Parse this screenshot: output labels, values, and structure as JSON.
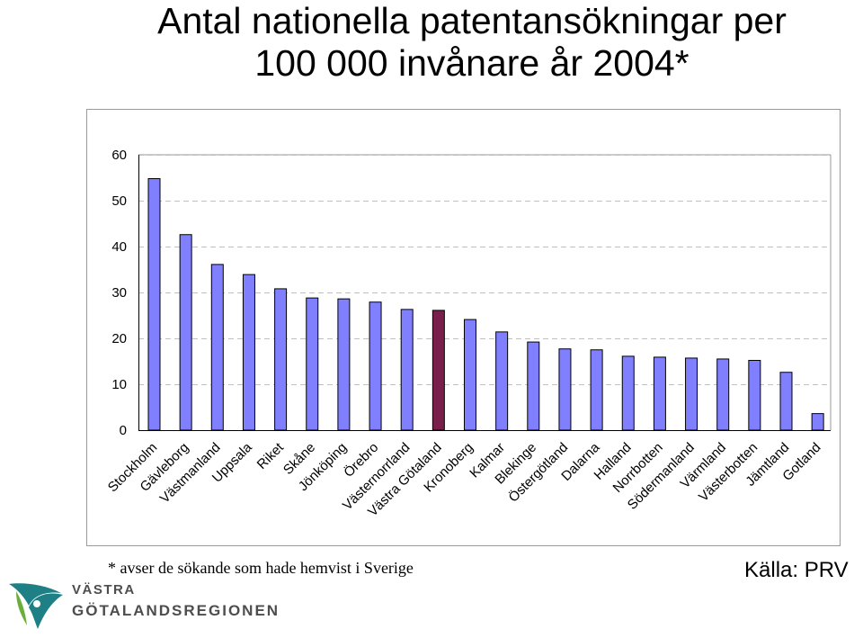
{
  "title": {
    "line1": "Antal nationella patentansökningar per",
    "line2": "100 000 invånare år 2004*"
  },
  "footnote": "* avser de sökande som hade hemvist i Sverige",
  "source": "Källa: PRV",
  "logo": {
    "line1": "VÄSTRA",
    "line2": "GÖTALANDSREGIONEN",
    "colors": {
      "teal": "#1e7f84",
      "green": "#6cae3e",
      "text": "#4d4d4d"
    }
  },
  "chart_data": {
    "type": "bar",
    "categories": [
      "Stockholm",
      "Gävleborg",
      "Västmanland",
      "Uppsala",
      "Riket",
      "Skåne",
      "Jönköping",
      "Örebro",
      "Västernorrland",
      "Västra Götaland",
      "Kronoberg",
      "Kalmar",
      "Blekinge",
      "Östergötland",
      "Dalarna",
      "Halland",
      "Norrbotten",
      "Södermanland",
      "Värmland",
      "Västerbotten",
      "Jämtland",
      "Gotland"
    ],
    "values": [
      54.8,
      42.6,
      36.1,
      33.9,
      30.8,
      28.8,
      28.6,
      27.9,
      26.3,
      26.1,
      24.1,
      21.4,
      19.2,
      17.7,
      17.5,
      16.1,
      15.9,
      15.7,
      15.5,
      15.2,
      12.6,
      3.6
    ],
    "highlight_category": "Västra Götaland",
    "yticks": [
      0,
      10,
      20,
      30,
      40,
      50,
      60
    ],
    "ylim": [
      0,
      60
    ],
    "grid": true,
    "colors": {
      "bar": "#8080ff",
      "highlight": "#7a1e4b",
      "grid": "#c0c0c0"
    }
  }
}
